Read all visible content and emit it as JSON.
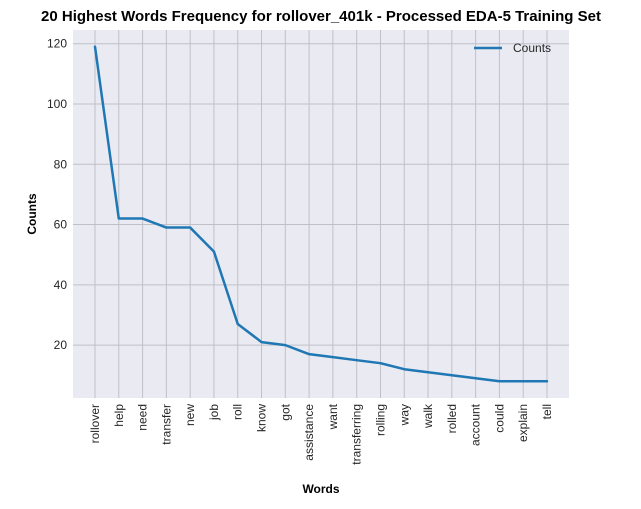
{
  "chart_data": {
    "type": "line",
    "title": "20 Highest Words Frequency for rollover_401k - Processed EDA-5 Training Set",
    "xlabel": "Words",
    "ylabel": "Counts",
    "categories": [
      "rollover",
      "help",
      "need",
      "transfer",
      "new",
      "job",
      "roll",
      "know",
      "got",
      "assistance",
      "want",
      "transferring",
      "rolling",
      "way",
      "walk",
      "rolled",
      "account",
      "could",
      "explain",
      "tell"
    ],
    "series": [
      {
        "name": "Counts",
        "values": [
          119,
          62,
          62,
          59,
          59,
          51,
          27,
          21,
          20,
          17,
          16,
          15,
          14,
          12,
          11,
          10,
          9,
          8,
          8,
          8
        ],
        "color": "#1f77b4"
      }
    ],
    "ylim": [
      2.45,
      124.55
    ],
    "yticks": [
      20,
      40,
      60,
      80,
      100,
      120
    ],
    "grid": true,
    "legend_position": "top-right",
    "background": "#eaeaf2",
    "grid_color": "#c0c0c8"
  }
}
